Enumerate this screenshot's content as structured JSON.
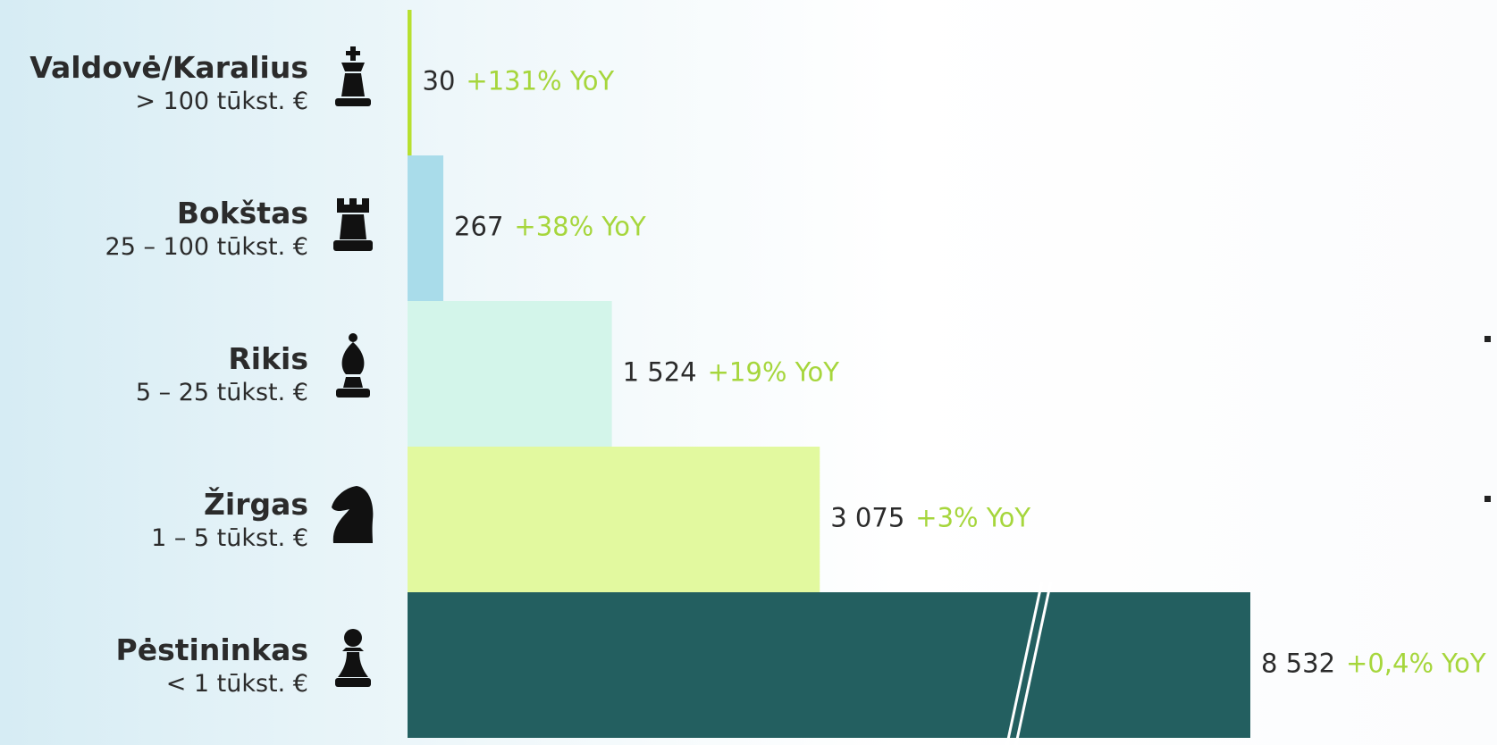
{
  "chart_data": {
    "type": "bar",
    "orientation": "horizontal",
    "categories": [
      "Valdovė/Karalius",
      "Bokštas",
      "Rikis",
      "Žirgas",
      "Pėstininkas"
    ],
    "ranges": [
      "> 100 tūkst. €",
      "25 – 100 tūkst. €",
      "5 – 25 tūkst. €",
      "1 – 5 tūkst. €",
      "< 1 tūkst. €"
    ],
    "values": [
      30,
      267,
      1524,
      3075,
      8532
    ],
    "value_labels": [
      "30",
      "267",
      "1 524",
      "3 075",
      "8 532"
    ],
    "changes": [
      "+131% YoY",
      "+38% YoY",
      "+19% YoY",
      "+3% YoY",
      "+0,4% YoY"
    ],
    "colors": [
      "#b7e02f",
      "#a9dcea",
      "#d3f5ea",
      "#e2f99f",
      "#235f60"
    ]
  }
}
